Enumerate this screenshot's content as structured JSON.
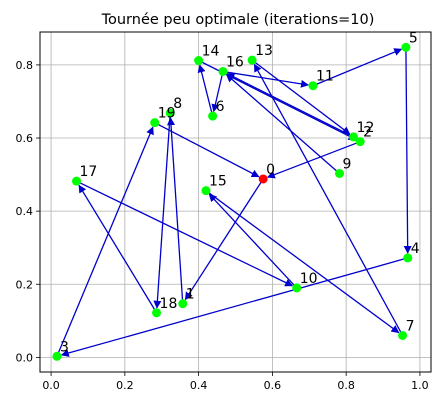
{
  "chart_data": {
    "type": "scatter",
    "title": "Tournée peu optimale (iterations=10)",
    "xlabel": "",
    "ylabel": "",
    "xlim": [
      -0.03,
      1.03
    ],
    "ylim": [
      -0.04,
      0.89
    ],
    "xticks": [
      0.0,
      0.2,
      0.4,
      0.6,
      0.8,
      1.0
    ],
    "xtick_labels": [
      "0.0",
      "0.2",
      "0.4",
      "0.6",
      "0.8",
      "1.0"
    ],
    "yticks": [
      0.0,
      0.2,
      0.4,
      0.6,
      0.8
    ],
    "ytick_labels": [
      "0.0",
      "0.2",
      "0.4",
      "0.6",
      "0.8"
    ],
    "grid": true,
    "colors": {
      "node": "#00ff00",
      "start_node": "#ff0000",
      "edge": "#0000cd",
      "grid": "#b0b0b0"
    },
    "points": [
      {
        "label": "0",
        "x": 0.575,
        "y": 0.488,
        "start": true
      },
      {
        "label": "1",
        "x": 0.357,
        "y": 0.147
      },
      {
        "label": "2",
        "x": 0.838,
        "y": 0.59
      },
      {
        "label": "3",
        "x": 0.016,
        "y": 0.003
      },
      {
        "label": "4",
        "x": 0.967,
        "y": 0.272
      },
      {
        "label": "5",
        "x": 0.962,
        "y": 0.848
      },
      {
        "label": "6",
        "x": 0.438,
        "y": 0.66
      },
      {
        "label": "7",
        "x": 0.953,
        "y": 0.06
      },
      {
        "label": "8",
        "x": 0.323,
        "y": 0.668
      },
      {
        "label": "9",
        "x": 0.782,
        "y": 0.503
      },
      {
        "label": "10",
        "x": 0.666,
        "y": 0.19
      },
      {
        "label": "11",
        "x": 0.71,
        "y": 0.743
      },
      {
        "label": "12",
        "x": 0.82,
        "y": 0.603
      },
      {
        "label": "13",
        "x": 0.545,
        "y": 0.813
      },
      {
        "label": "14",
        "x": 0.4,
        "y": 0.812
      },
      {
        "label": "15",
        "x": 0.42,
        "y": 0.456
      },
      {
        "label": "16",
        "x": 0.466,
        "y": 0.782
      },
      {
        "label": "17",
        "x": 0.069,
        "y": 0.482
      },
      {
        "label": "18",
        "x": 0.286,
        "y": 0.122
      },
      {
        "label": "19",
        "x": 0.281,
        "y": 0.642
      }
    ],
    "route": [
      "0",
      "1",
      "8",
      "18",
      "17",
      "10",
      "15",
      "7",
      "13",
      "12",
      "16",
      "11",
      "5",
      "4",
      "3",
      "19",
      "0"
    ],
    "route2": [
      "9",
      "16",
      "6",
      "14",
      "2",
      "0"
    ]
  }
}
